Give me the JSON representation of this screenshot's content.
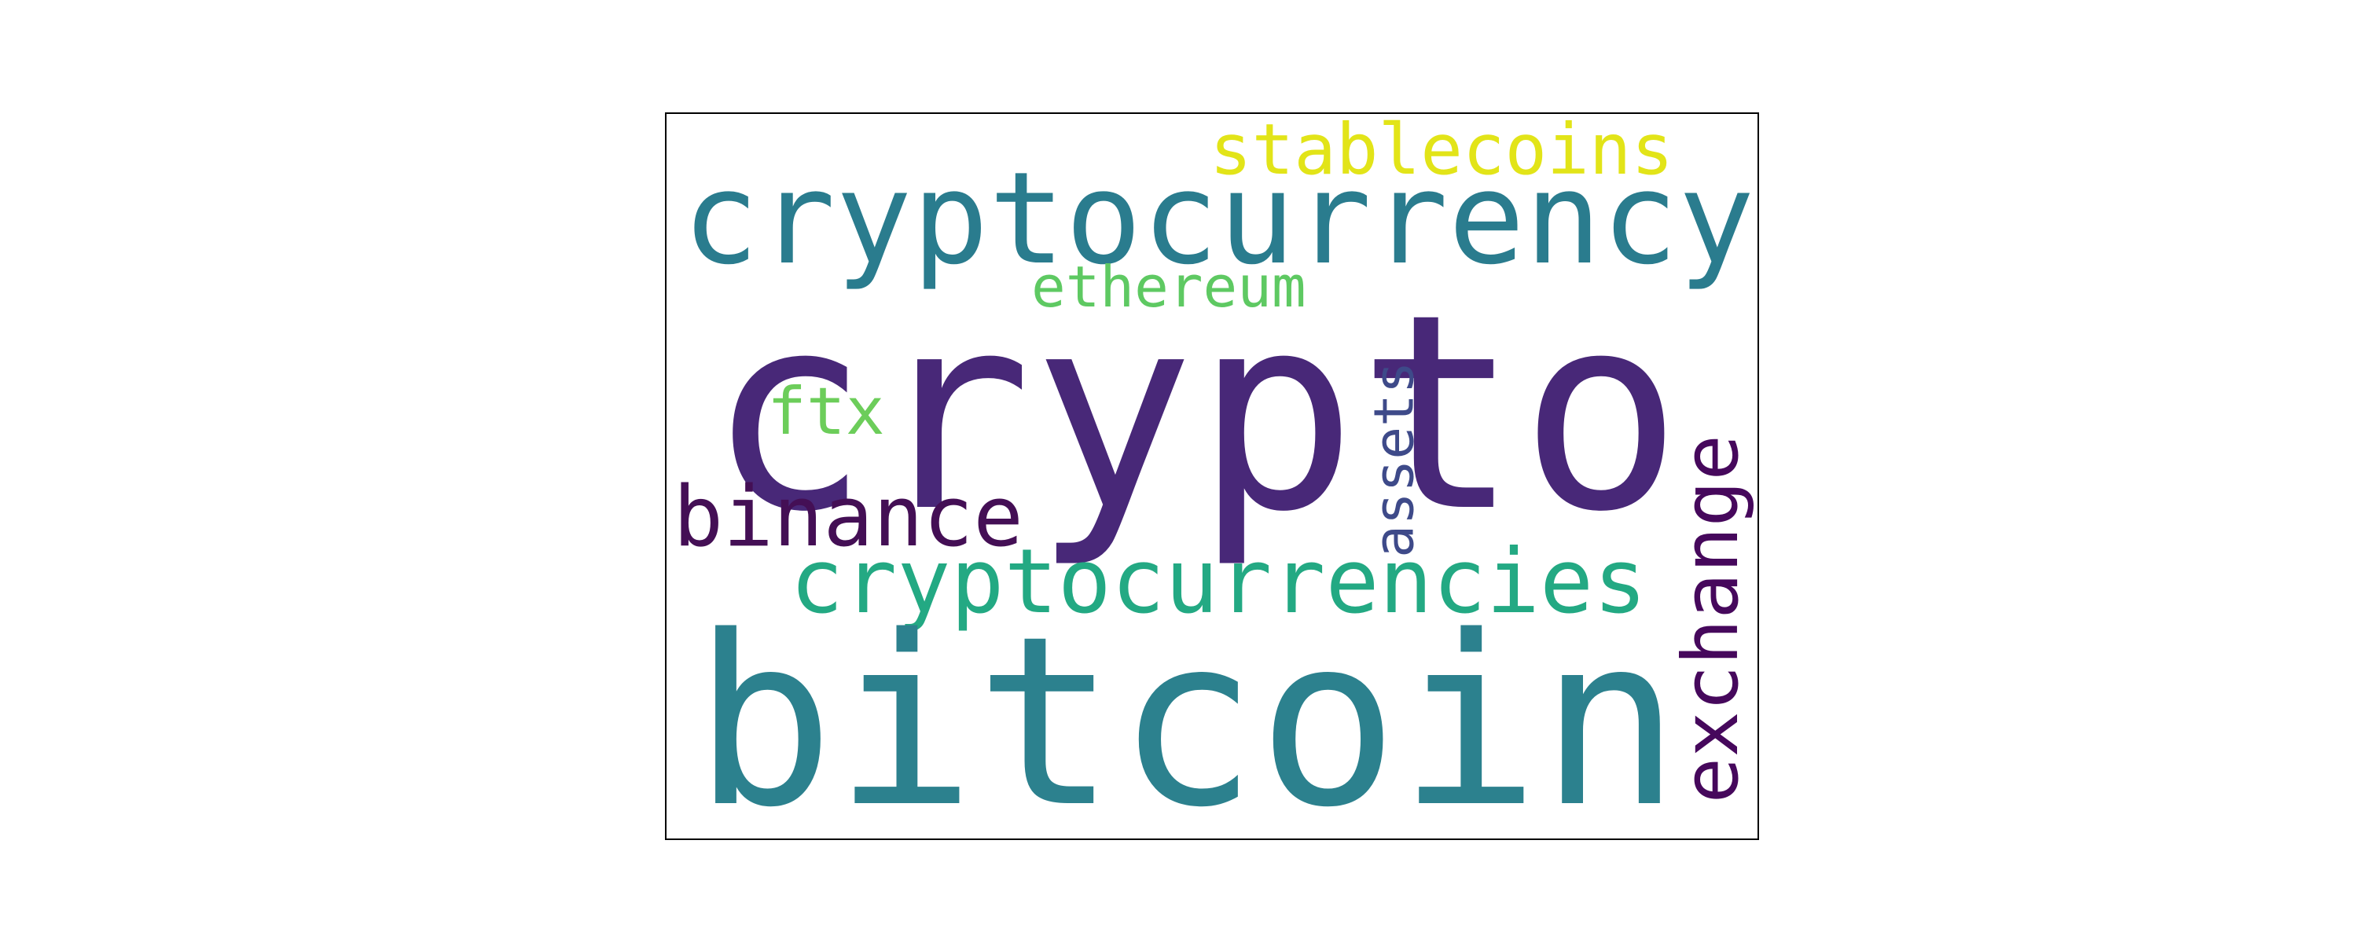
{
  "words": [
    {
      "key": "crypto",
      "text": "crypto",
      "color": "#482878"
    },
    {
      "key": "bitcoin",
      "text": "bitcoin",
      "color": "#2c818e"
    },
    {
      "key": "cryptocurrency",
      "text": "cryptocurrency",
      "color": "#2a7c8e"
    },
    {
      "key": "cryptocurrencies",
      "text": "cryptocurrencies",
      "color": "#23a983"
    },
    {
      "key": "binance",
      "text": "binance",
      "color": "#440f55"
    },
    {
      "key": "exchange",
      "text": "exchange",
      "color": "#46085c"
    },
    {
      "key": "stablecoins",
      "text": "stablecoins",
      "color": "#e2e418"
    },
    {
      "key": "ethereum",
      "text": "ethereum",
      "color": "#5ec962"
    },
    {
      "key": "ftx",
      "text": "ftx",
      "color": "#6ccd5a"
    },
    {
      "key": "assets",
      "text": "assets",
      "color": "#3e4a89"
    }
  ]
}
